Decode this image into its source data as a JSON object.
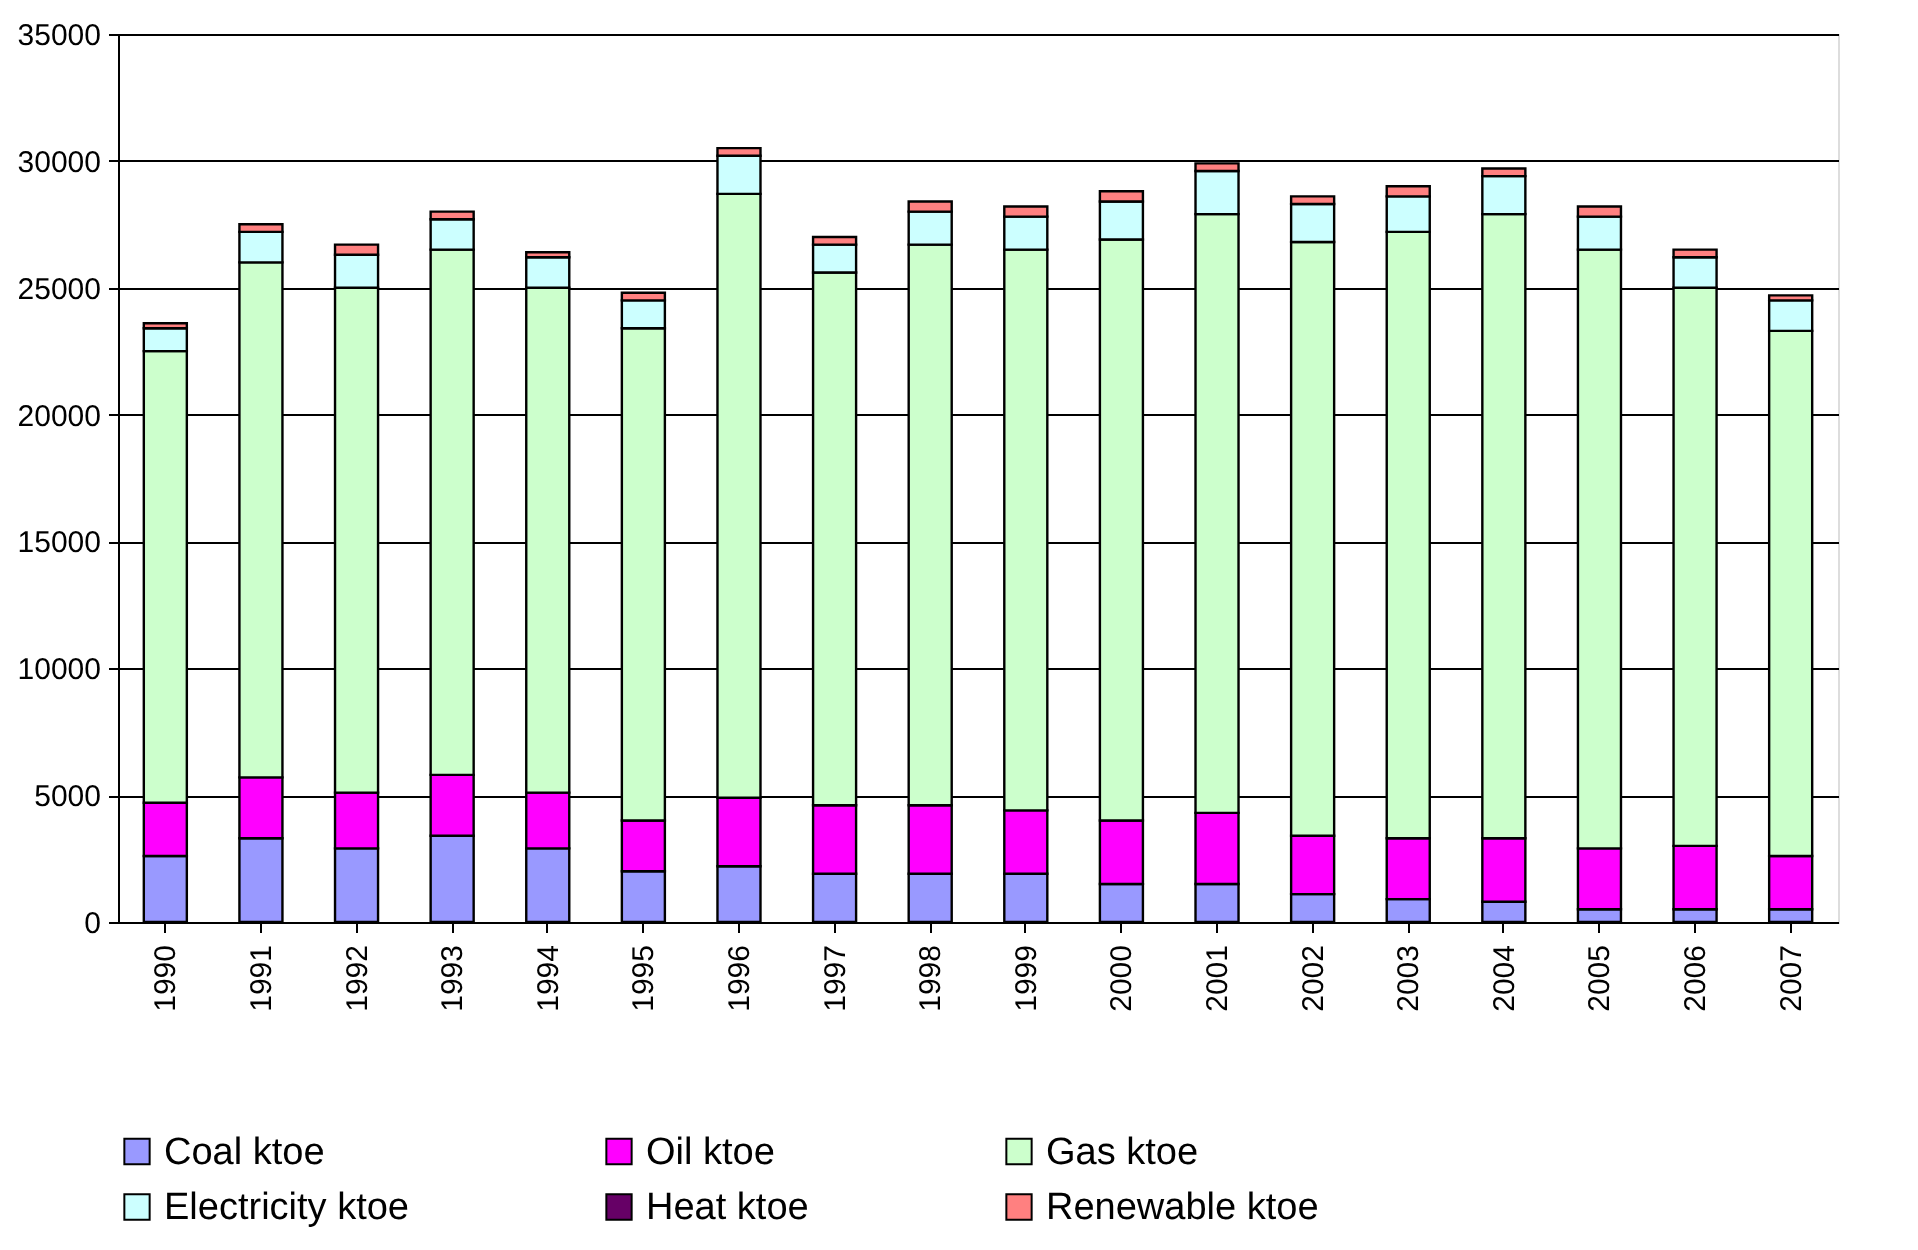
{
  "chart_data": {
    "type": "bar",
    "stacked": true,
    "categories": [
      "1990",
      "1991",
      "1992",
      "1993",
      "1994",
      "1995",
      "1996",
      "1997",
      "1998",
      "1999",
      "2000",
      "2001",
      "2002",
      "2003",
      "2004",
      "2005",
      "2006",
      "2007"
    ],
    "series": [
      {
        "name": "Coal ktoe",
        "color": "#9999ff",
        "values": [
          2600,
          3300,
          2900,
          3400,
          2900,
          2000,
          2200,
          1900,
          1900,
          1900,
          1500,
          1500,
          1100,
          900,
          800,
          500,
          500,
          500
        ]
      },
      {
        "name": "Oil ktoe",
        "color": "#ff00ff",
        "values": [
          2100,
          2400,
          2200,
          2400,
          2200,
          2000,
          2700,
          2700,
          2700,
          2500,
          2500,
          2800,
          2300,
          2400,
          2500,
          2400,
          2500,
          2100
        ]
      },
      {
        "name": "Gas ktoe",
        "color": "#ccffcc",
        "values": [
          17800,
          20300,
          19900,
          20700,
          19900,
          19400,
          23800,
          21000,
          22100,
          22100,
          22900,
          23600,
          23400,
          23900,
          24600,
          23600,
          22000,
          20700
        ]
      },
      {
        "name": "Electricity ktoe",
        "color": "#ccffff",
        "values": [
          900,
          1200,
          1300,
          1200,
          1200,
          1100,
          1500,
          1100,
          1300,
          1300,
          1500,
          1700,
          1500,
          1400,
          1500,
          1300,
          1200,
          1200
        ]
      },
      {
        "name": "Heat ktoe",
        "color": "#660066",
        "values": [
          null,
          null,
          null,
          null,
          null,
          null,
          null,
          null,
          null,
          null,
          null,
          null,
          null,
          null,
          null,
          null,
          null,
          null
        ]
      },
      {
        "name": "Renewable ktoe",
        "color": "#ff8080",
        "values": [
          200,
          300,
          400,
          300,
          200,
          300,
          300,
          300,
          400,
          400,
          400,
          300,
          300,
          400,
          300,
          400,
          300,
          200
        ]
      }
    ],
    "ylim": [
      0,
      35000
    ],
    "yticks": [
      0,
      5000,
      10000,
      15000,
      20000,
      25000,
      30000,
      35000
    ],
    "grid": "y",
    "legend": "bottom"
  }
}
